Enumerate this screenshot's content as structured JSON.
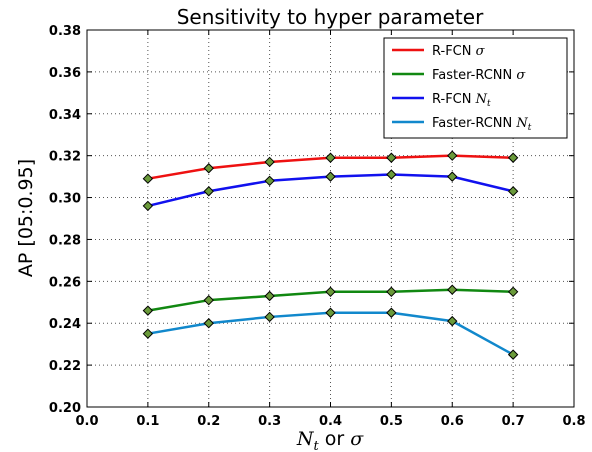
{
  "chart_data": {
    "type": "line",
    "title": "Sensitivity to hyper parameter",
    "xlabel": {
      "prefix": "N",
      "sub": "t",
      "mid": " or ",
      "suffix": "σ"
    },
    "ylabel": "AP [05:0.95]",
    "xlim": [
      0.0,
      0.8
    ],
    "ylim": [
      0.2,
      0.38
    ],
    "x_ticks": [
      "0.0",
      "0.1",
      "0.2",
      "0.3",
      "0.4",
      "0.5",
      "0.6",
      "0.7",
      "0.8"
    ],
    "y_ticks": [
      "0.20",
      "0.22",
      "0.24",
      "0.26",
      "0.28",
      "0.30",
      "0.32",
      "0.34",
      "0.36",
      "0.38"
    ],
    "grid": true,
    "legend_position": "top-right",
    "x": [
      0.1,
      0.2,
      0.3,
      0.4,
      0.5,
      0.6,
      0.7
    ],
    "series": [
      {
        "name": "R-FCN σ",
        "label_text": "R-FCN ",
        "label_math": "σ",
        "label_sub": "",
        "color": "#ee1111",
        "values": [
          0.309,
          0.314,
          0.317,
          0.319,
          0.319,
          0.32,
          0.319
        ]
      },
      {
        "name": "Faster-RCNN σ",
        "label_text": "Faster-RCNN ",
        "label_math": "σ",
        "label_sub": "",
        "color": "#118811",
        "values": [
          0.246,
          0.251,
          0.253,
          0.255,
          0.255,
          0.256,
          0.255
        ]
      },
      {
        "name": "R-FCN Nt",
        "label_text": "R-FCN ",
        "label_math": "N",
        "label_sub": "t",
        "color": "#1111ee",
        "values": [
          0.296,
          0.303,
          0.308,
          0.31,
          0.311,
          0.31,
          0.303
        ]
      },
      {
        "name": "Faster-RCNN Nt",
        "label_text": "Faster-RCNN ",
        "label_math": "N",
        "label_sub": "t",
        "color": "#1188cc",
        "values": [
          0.235,
          0.24,
          0.243,
          0.245,
          0.245,
          0.241,
          0.225
        ]
      }
    ],
    "marker": {
      "shape": "diamond",
      "fill": "#6a9a3a",
      "stroke": "#000000"
    }
  }
}
